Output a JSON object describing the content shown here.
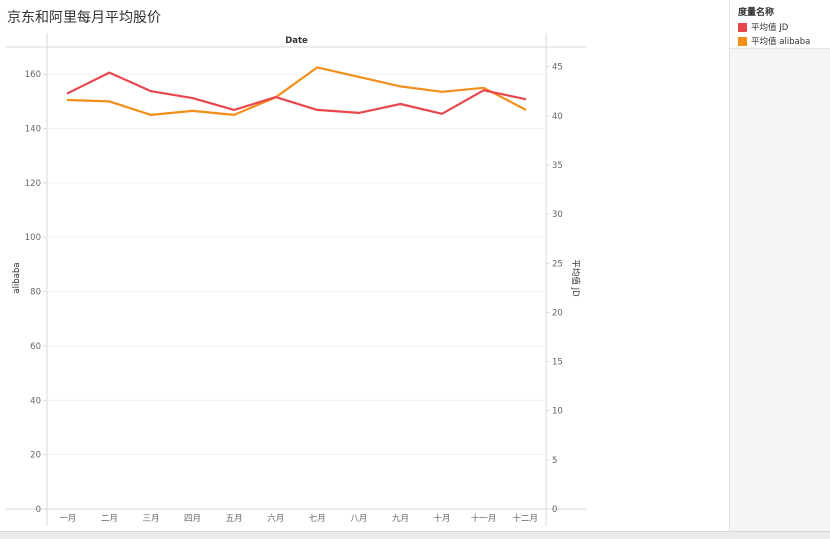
{
  "title": "京东和阿里每月平均股价",
  "legend": {
    "title": "度量名称",
    "items": [
      {
        "label": "平均值 JD",
        "color": "#e8474e"
      },
      {
        "label": "平均值 alibaba",
        "color": "#f28e1c"
      }
    ]
  },
  "chart_data": {
    "type": "line",
    "title": "京东和阿里每月平均股价",
    "top_label": "Date",
    "xlabel": "",
    "ylabel_left": "alibaba",
    "ylabel_right": "平均值 JD",
    "categories": [
      "一月",
      "二月",
      "三月",
      "四月",
      "五月",
      "六月",
      "七月",
      "八月",
      "九月",
      "十月",
      "十一月",
      "十二月"
    ],
    "left_axis": {
      "min": 0,
      "max": 170,
      "ticks": [
        0,
        20,
        40,
        60,
        80,
        100,
        120,
        140,
        160
      ]
    },
    "right_axis": {
      "min": 0,
      "max": 47,
      "ticks": [
        0,
        5,
        10,
        15,
        20,
        25,
        30,
        35,
        40,
        45
      ]
    },
    "series": [
      {
        "name": "平均值 JD",
        "axis": "right",
        "color": "#e8474e",
        "values": [
          42.3,
          44.4,
          42.5,
          41.8,
          40.6,
          41.9,
          40.6,
          40.3,
          41.2,
          40.2,
          42.6,
          41.7
        ]
      },
      {
        "name": "平均值 alibaba",
        "axis": "left",
        "color": "#f28e1c",
        "values": [
          150.5,
          150.0,
          145.0,
          146.5,
          145.0,
          151.5,
          162.5,
          159.0,
          155.5,
          153.5,
          155.0,
          147.0
        ]
      }
    ],
    "grid": true,
    "legend_position": "right"
  }
}
